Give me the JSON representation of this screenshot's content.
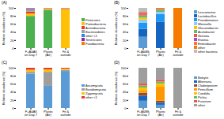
{
  "chart_data": [
    {
      "type": "bar",
      "title": "(A)",
      "y_label": "Relative abundance (%)",
      "categories": [
        "F+A&All\non Day 7",
        "Plastic\n(Air)",
        "Fit &\noutside"
      ],
      "series": [
        {
          "name": "Firmicutes",
          "color": "#4CAF50",
          "values": [
            80,
            95,
            0
          ]
        },
        {
          "name": "Proteobacteria",
          "color": "#FFC107",
          "values": [
            6,
            2,
            97
          ]
        },
        {
          "name": "Actinobacteria",
          "color": "#E53935",
          "values": [
            5,
            1,
            1
          ]
        },
        {
          "name": "Bacteroidetes",
          "color": "#9E9E9E",
          "values": [
            4,
            1,
            1
          ]
        },
        {
          "name": "other <1",
          "color": "#1E88E5",
          "values": [
            2,
            0,
            0
          ]
        },
        {
          "name": "Tenericutes",
          "color": "#8E24AA",
          "values": [
            2,
            0,
            0
          ]
        },
        {
          "name": "Fusobacteria",
          "color": "#F57C00",
          "values": [
            1,
            1,
            1
          ]
        }
      ],
      "stacked": true,
      "ylim": [
        0,
        100
      ],
      "yticks": [
        0,
        20,
        40,
        60,
        80,
        100
      ],
      "grid": false,
      "legend": "right"
    },
    {
      "type": "bar",
      "title": "(B)",
      "y_label": "Relative abundance (%)",
      "categories": [
        "F+A&Blk\non Day 7",
        "Plastic\n(Air)",
        "Fit &\noutside"
      ],
      "series": [
        {
          "name": "Leuconostoc",
          "color": "#5B9BD5",
          "values": [
            28,
            0,
            0
          ]
        },
        {
          "name": "Lactobacillus",
          "color": "#1565C0",
          "values": [
            20,
            65,
            0
          ]
        },
        {
          "name": "Pseudomonas",
          "color": "#2196F3",
          "values": [
            15,
            20,
            0
          ]
        },
        {
          "name": "Weissella",
          "color": "#90CAF9",
          "values": [
            8,
            5,
            0
          ]
        },
        {
          "name": "Gluconobacter",
          "color": "#FFC107",
          "values": [
            5,
            0,
            0
          ]
        },
        {
          "name": "Acetobacter",
          "color": "#66BB6A",
          "values": [
            5,
            5,
            0
          ]
        },
        {
          "name": "Serratia",
          "color": "#EF5350",
          "values": [
            3,
            0,
            0
          ]
        },
        {
          "name": "Erwinia",
          "color": "#AB47BC",
          "values": [
            2,
            2,
            0
          ]
        },
        {
          "name": "Enterobacter",
          "color": "#FF7043",
          "values": [
            2,
            0,
            0
          ]
        },
        {
          "name": "other",
          "color": "#F57C00",
          "values": [
            2,
            3,
            100
          ]
        },
        {
          "name": "other bacteria",
          "color": "#BDBDBD",
          "values": [
            10,
            0,
            0
          ]
        }
      ],
      "stacked": true,
      "ylim": [
        0,
        100
      ],
      "yticks": [
        0,
        20,
        40,
        60,
        80,
        100
      ],
      "grid": false,
      "legend": "right"
    },
    {
      "type": "bar",
      "title": "(C)",
      "y_label": "Relative abundance (%)",
      "categories": [
        "F+A&All\non Day 7",
        "Plastic\n(Air)",
        "Fit &\noutside"
      ],
      "series": [
        {
          "name": "Ascomycota",
          "color": "#5B9BD5",
          "values": [
            85,
            55,
            92
          ]
        },
        {
          "name": "Basidiomycota",
          "color": "#9E9E9E",
          "values": [
            5,
            35,
            3
          ]
        },
        {
          "name": "Zygomycota",
          "color": "#FFC107",
          "values": [
            5,
            6,
            3
          ]
        },
        {
          "name": "other <1",
          "color": "#E53935",
          "values": [
            5,
            4,
            2
          ]
        }
      ],
      "stacked": true,
      "ylim": [
        0,
        100
      ],
      "yticks": [
        0,
        20,
        40,
        60,
        80,
        100
      ],
      "grid": false,
      "legend": "right"
    },
    {
      "type": "bar",
      "title": "(D)",
      "y_label": "Relative abundance (%)",
      "categories": [
        "F+A&Blk\non Day 7",
        "Plastic\n(Air)",
        "Fit &\noutside"
      ],
      "series": [
        {
          "name": "Botrytis",
          "color": "#5B9BD5",
          "values": [
            18,
            8,
            0
          ]
        },
        {
          "name": "Alternaria",
          "color": "#1565C0",
          "values": [
            12,
            5,
            0
          ]
        },
        {
          "name": "Cladosporium",
          "color": "#8D4E37",
          "values": [
            8,
            5,
            0
          ]
        },
        {
          "name": "Penicillium",
          "color": "#FF9800",
          "values": [
            5,
            35,
            0
          ]
        },
        {
          "name": "Candida",
          "color": "#FFC107",
          "values": [
            8,
            8,
            0
          ]
        },
        {
          "name": "Pichia",
          "color": "#66BB6A",
          "values": [
            5,
            5,
            0
          ]
        },
        {
          "name": "Fusarium",
          "color": "#EF5350",
          "values": [
            5,
            5,
            0
          ]
        },
        {
          "name": "other",
          "color": "#9E9E9E",
          "values": [
            39,
            29,
            100
          ]
        }
      ],
      "stacked": true,
      "ylim": [
        0,
        100
      ],
      "yticks": [
        0,
        20,
        40,
        60,
        80,
        100
      ],
      "grid": false,
      "legend": "right"
    }
  ]
}
